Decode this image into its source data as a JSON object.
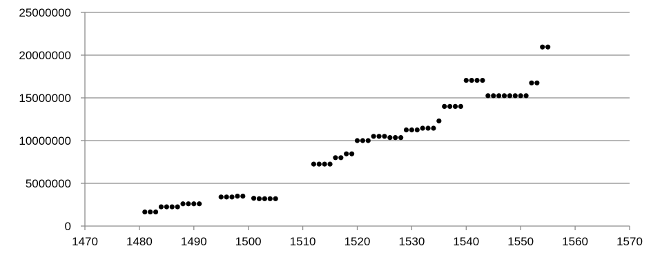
{
  "chart_data": {
    "type": "scatter",
    "title": "",
    "xlabel": "",
    "ylabel": "",
    "xlim": [
      1470,
      1570
    ],
    "ylim": [
      0,
      25000000
    ],
    "x_ticks": [
      "1470",
      "1480",
      "1490",
      "1500",
      "1510",
      "1520",
      "1530",
      "1540",
      "1550",
      "1560",
      "1570"
    ],
    "y_ticks": [
      "0",
      "5000000",
      "10000000",
      "15000000",
      "20000000",
      "25000000"
    ],
    "grid": "horizontal",
    "legend": "none",
    "point_color": "#000000",
    "points": [
      {
        "x": 1481,
        "y": 1650000
      },
      {
        "x": 1482,
        "y": 1650000
      },
      {
        "x": 1483,
        "y": 1650000
      },
      {
        "x": 1484,
        "y": 2250000
      },
      {
        "x": 1485,
        "y": 2250000
      },
      {
        "x": 1486,
        "y": 2250000
      },
      {
        "x": 1487,
        "y": 2250000
      },
      {
        "x": 1488,
        "y": 2600000
      },
      {
        "x": 1489,
        "y": 2600000
      },
      {
        "x": 1490,
        "y": 2600000
      },
      {
        "x": 1491,
        "y": 2600000
      },
      {
        "x": 1495,
        "y": 3400000
      },
      {
        "x": 1496,
        "y": 3400000
      },
      {
        "x": 1497,
        "y": 3400000
      },
      {
        "x": 1498,
        "y": 3500000
      },
      {
        "x": 1499,
        "y": 3500000
      },
      {
        "x": 1501,
        "y": 3250000
      },
      {
        "x": 1502,
        "y": 3200000
      },
      {
        "x": 1503,
        "y": 3200000
      },
      {
        "x": 1504,
        "y": 3200000
      },
      {
        "x": 1505,
        "y": 3200000
      },
      {
        "x": 1512,
        "y": 7250000
      },
      {
        "x": 1513,
        "y": 7250000
      },
      {
        "x": 1514,
        "y": 7250000
      },
      {
        "x": 1515,
        "y": 7250000
      },
      {
        "x": 1516,
        "y": 8000000
      },
      {
        "x": 1517,
        "y": 8000000
      },
      {
        "x": 1518,
        "y": 8450000
      },
      {
        "x": 1519,
        "y": 8450000
      },
      {
        "x": 1520,
        "y": 10000000
      },
      {
        "x": 1521,
        "y": 10000000
      },
      {
        "x": 1522,
        "y": 10000000
      },
      {
        "x": 1523,
        "y": 10500000
      },
      {
        "x": 1524,
        "y": 10500000
      },
      {
        "x": 1525,
        "y": 10500000
      },
      {
        "x": 1526,
        "y": 10350000
      },
      {
        "x": 1527,
        "y": 10350000
      },
      {
        "x": 1528,
        "y": 10350000
      },
      {
        "x": 1529,
        "y": 11250000
      },
      {
        "x": 1530,
        "y": 11250000
      },
      {
        "x": 1531,
        "y": 11250000
      },
      {
        "x": 1532,
        "y": 11450000
      },
      {
        "x": 1533,
        "y": 11450000
      },
      {
        "x": 1534,
        "y": 11450000
      },
      {
        "x": 1535,
        "y": 12300000
      },
      {
        "x": 1536,
        "y": 14000000
      },
      {
        "x": 1537,
        "y": 14000000
      },
      {
        "x": 1538,
        "y": 14000000
      },
      {
        "x": 1539,
        "y": 14000000
      },
      {
        "x": 1540,
        "y": 17050000
      },
      {
        "x": 1541,
        "y": 17050000
      },
      {
        "x": 1542,
        "y": 17050000
      },
      {
        "x": 1543,
        "y": 17050000
      },
      {
        "x": 1544,
        "y": 15250000
      },
      {
        "x": 1545,
        "y": 15250000
      },
      {
        "x": 1546,
        "y": 15250000
      },
      {
        "x": 1547,
        "y": 15250000
      },
      {
        "x": 1548,
        "y": 15250000
      },
      {
        "x": 1549,
        "y": 15250000
      },
      {
        "x": 1550,
        "y": 15250000
      },
      {
        "x": 1551,
        "y": 15250000
      },
      {
        "x": 1552,
        "y": 16750000
      },
      {
        "x": 1553,
        "y": 16750000
      },
      {
        "x": 1554,
        "y": 20950000
      },
      {
        "x": 1555,
        "y": 20950000
      }
    ]
  }
}
